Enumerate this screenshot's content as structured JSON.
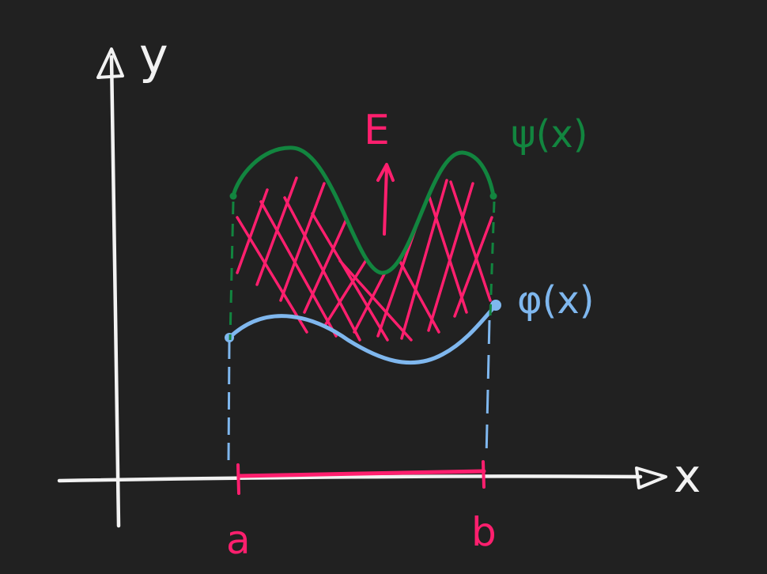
{
  "labels": {
    "y_axis": "y",
    "x_axis": "x",
    "a": "a",
    "b": "b",
    "region": "E",
    "upper_curve": "ψ(x)",
    "lower_curve": "φ(x)"
  },
  "colors": {
    "background": "#212121",
    "axes": "#f2f2f2",
    "region_and_interval": "#ff1f6e",
    "upper_curve": "#12853f",
    "lower_curve": "#7fb7ee"
  }
}
